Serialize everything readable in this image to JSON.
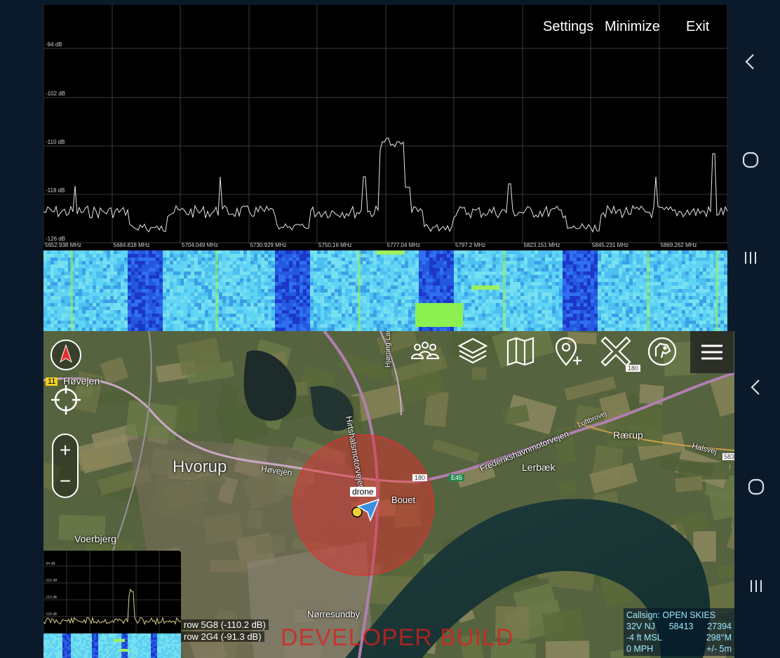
{
  "spectrum": {
    "actions": {
      "settings": "Settings",
      "minimize": "Minimize",
      "exit": "Exit"
    },
    "db_labels": [
      "-94 dB",
      "-102 dB",
      "-110 dB",
      "-118 dB",
      "-126 dB"
    ],
    "freq_labels": [
      "5652.938 MHz",
      "5684.818 MHz",
      "5704.049 MHz",
      "5730.929 MHz",
      "5750.16 MHz",
      "5777.04 MHz",
      "5797.2 MHz",
      "5823.151 MHz",
      "5845.231 MHz",
      "5869.262 MHz"
    ]
  },
  "map": {
    "labels": {
      "hovejen_top": "Høvejen",
      "hovejen_mid": "Høvejen",
      "hvorup": "Hvorup",
      "voerbjerg": "Voerbjerg",
      "raerup": "Rærup",
      "lerbaek": "Lerbæk",
      "bouet": "Bouet",
      "norresundby": "Nørresundby",
      "hirtshalsmotorvejen": "Hirtshalsmotorvejen",
      "hjorring_landevej": "Hjørring-Landevej",
      "frederikshavnmotorvejen": "Frederikshavnmotorvejen",
      "loftbrovej": "Loftbrovej",
      "halsvej": "Halsvej",
      "road_11": "11",
      "road_180": "180",
      "road_180b": "180",
      "road_e45": "E45",
      "road_583": "583"
    },
    "drone_label": "drone",
    "readouts": [
      "row 5G8 (-110.2 dB)",
      "row 2G4 (-91.3 dB)"
    ],
    "watermark": "DEVELOPER BUILD",
    "info": {
      "callsign": "Callsign: OPEN SKIES",
      "grid_zone": "32V  NJ",
      "easting": "58413",
      "northing": "27394",
      "altitude": "-4 ft MSL",
      "heading": "298°M",
      "speed": "0 MPH",
      "accuracy": "+/- 5m"
    },
    "mini_db_labels": [
      "-94 dB",
      "-102 dB",
      "-110 dB",
      "-118 dB"
    ],
    "zoom_in": "+",
    "zoom_out": "−"
  },
  "icons": [
    "compass-icon",
    "crosshair-icon",
    "team-icon",
    "layers-icon",
    "map-icon",
    "add-location-icon",
    "close-x-icon",
    "dog-icon",
    "menu-icon"
  ],
  "colors": {
    "accent_blue": "#2a7fd4",
    "alert_red": "#e03030",
    "waterfall_dark": "#1a4fd8",
    "waterfall_light": "#5fd8f0"
  }
}
